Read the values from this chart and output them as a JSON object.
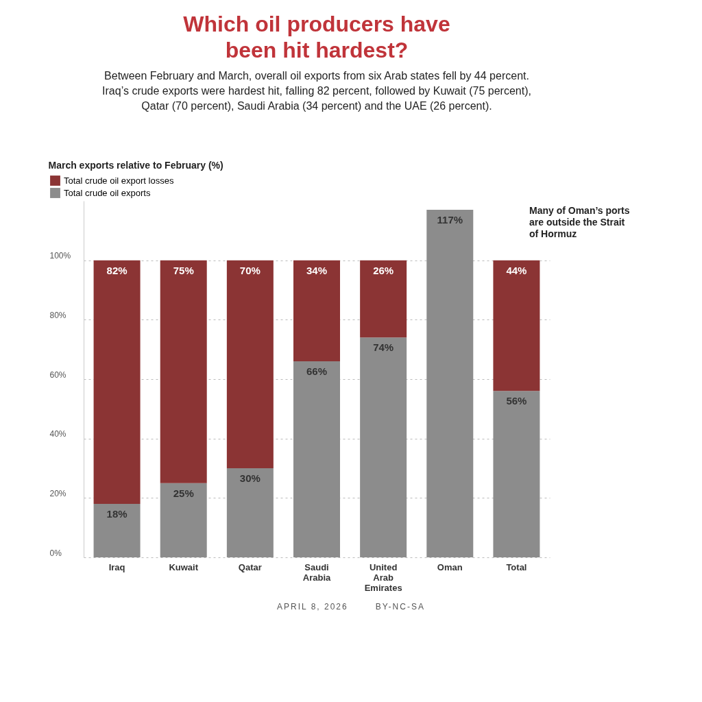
{
  "chart_data": {
    "type": "bar",
    "title": "Which oil producers have been hit hardest?",
    "subtitle": "Between February and March, overall oil exports from six Arab states fell by 44 percent. Iraq’s crude exports were hardest hit, falling 82 percent, followed by Kuwait (75 percent), Qatar (70 percent), Saudi Arabia (34 percent) and the UAE (26 percent).",
    "ylabel": "March exports relative to February (%)",
    "categories": [
      "Iraq",
      "Kuwait",
      "Qatar",
      "Saudi Arabia",
      "United Arab Emirates",
      "Oman",
      "Total"
    ],
    "stacked": true,
    "series": [
      {
        "name": "Total crude oil exports",
        "color": "#8c8c8c",
        "values": [
          18,
          25,
          30,
          66,
          74,
          117,
          56
        ],
        "value_labels": [
          "18%",
          "25%",
          "30%",
          "66%",
          "74%",
          "117%",
          "56%"
        ]
      },
      {
        "name": "Total crude oil export losses",
        "color": "#8b3434",
        "values": [
          82,
          75,
          70,
          34,
          26,
          null,
          44
        ],
        "value_labels": [
          "82%",
          "75%",
          "70%",
          "34%",
          "26%",
          null,
          "44%"
        ]
      }
    ],
    "ylim": [
      0,
      120
    ],
    "yticks": [
      {
        "value": 0,
        "label": "0%"
      },
      {
        "value": 20,
        "label": "20%"
      },
      {
        "value": 40,
        "label": "40%"
      },
      {
        "value": 60,
        "label": "60%"
      },
      {
        "value": 80,
        "label": "80%"
      },
      {
        "value": 100,
        "label": "100%"
      }
    ],
    "grid": "y",
    "legend": "top left",
    "annotations": [
      "Many of Oman’s ports are outside the Strait of Hormuz",
      "APRIL 8, 2026",
      "BY-NC-SA"
    ]
  }
}
